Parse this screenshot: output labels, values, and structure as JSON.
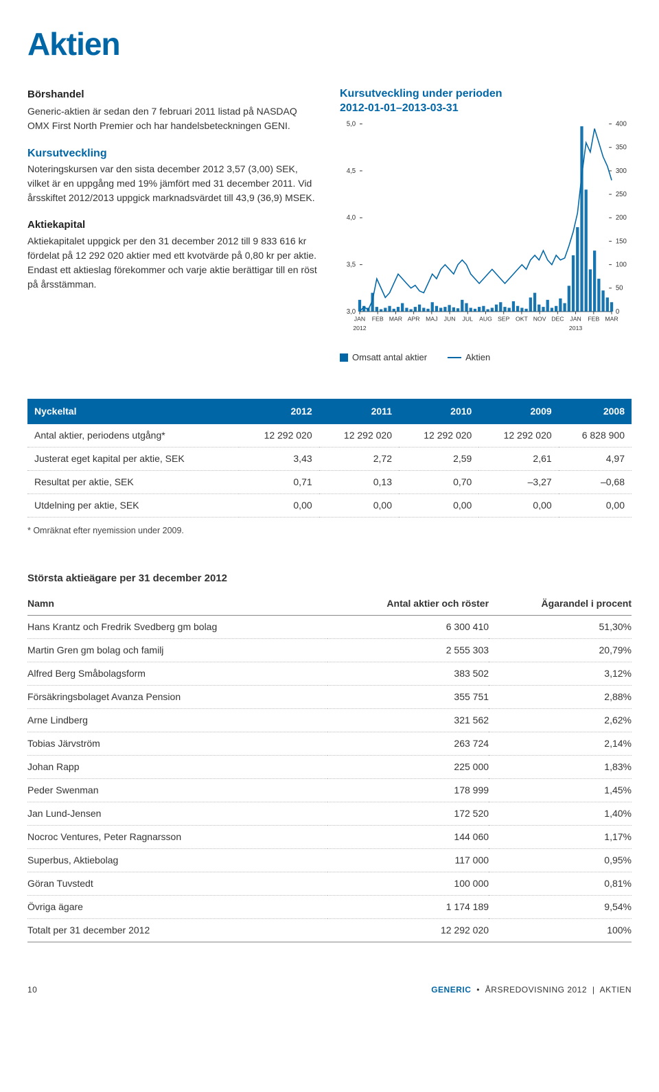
{
  "page": {
    "title": "Aktien",
    "number": "10",
    "footer_brand": "GENERIC",
    "footer_text": "ÅRSREDOVISNING 2012",
    "footer_section": "AKTIEN"
  },
  "sections": {
    "borshandel": {
      "heading": "Börshandel",
      "text": "Generic-aktien är sedan den 7 februari 2011 listad på NASDAQ OMX First North Premier och har handelsbeteckningen GENI."
    },
    "kursutveckling": {
      "heading": "Kursutveckling",
      "text": "Noteringskursen var den sista december 2012 3,57 (3,00) SEK, vilket är en uppgång med 19% jämfört med 31 december 2011. Vid årsskiftet 2012/2013 uppgick marknadsvärdet till 43,9 (36,9) MSEK."
    },
    "aktiekapital": {
      "heading": "Aktiekapital",
      "text": "Aktiekapitalet uppgick per den 31 december 2012 till 9 833 616 kr fördelat på 12 292 020 aktier med ett kvotvärde på 0,80 kr per aktie. Endast ett aktieslag förekommer och varje aktie berättigar till en röst på årsstämman."
    }
  },
  "chart": {
    "title_line1": "Kursutveckling under perioden",
    "title_line2": "2012-01-01–2013-03-31",
    "type": "line+bar",
    "left_axis": {
      "min": 3.0,
      "max": 5.0,
      "ticks": [
        "5,0",
        "4,5",
        "4,0",
        "3,5",
        "3,0"
      ]
    },
    "right_axis": {
      "min": 0,
      "max": 400,
      "ticks": [
        "400",
        "350",
        "300",
        "250",
        "200",
        "150",
        "100",
        "50",
        "0"
      ]
    },
    "x_labels": [
      "JAN",
      "FEB",
      "MAR",
      "APR",
      "MAJ",
      "JUN",
      "JUL",
      "AUG",
      "SEP",
      "OKT",
      "NOV",
      "DEC",
      "JAN",
      "FEB",
      "MAR"
    ],
    "x_year_left": "2012",
    "x_year_right": "2013",
    "line_color": "#0066a6",
    "bar_color": "#0066a6",
    "grid_color": "#dcdcdc",
    "background_color": "#ffffff",
    "axis_fontsize": 10,
    "legend": {
      "volume_label": "Omsatt antal aktier",
      "price_label": "Aktien"
    },
    "price_series": [
      3.0,
      3.05,
      3.02,
      3.12,
      3.35,
      3.25,
      3.15,
      3.2,
      3.3,
      3.4,
      3.35,
      3.3,
      3.25,
      3.28,
      3.22,
      3.2,
      3.3,
      3.4,
      3.35,
      3.45,
      3.5,
      3.45,
      3.4,
      3.5,
      3.55,
      3.5,
      3.4,
      3.35,
      3.3,
      3.35,
      3.4,
      3.45,
      3.4,
      3.35,
      3.3,
      3.35,
      3.4,
      3.45,
      3.5,
      3.45,
      3.55,
      3.6,
      3.55,
      3.65,
      3.55,
      3.5,
      3.6,
      3.55,
      3.57,
      3.7,
      3.85,
      4.05,
      4.45,
      4.8,
      4.7,
      4.95,
      4.8,
      4.65,
      4.55,
      4.4
    ],
    "volume_series": [
      25,
      12,
      8,
      40,
      10,
      5,
      8,
      12,
      6,
      10,
      18,
      8,
      5,
      10,
      15,
      8,
      6,
      20,
      12,
      8,
      10,
      14,
      9,
      7,
      25,
      18,
      8,
      6,
      10,
      12,
      5,
      8,
      15,
      20,
      10,
      8,
      22,
      12,
      8,
      6,
      30,
      40,
      15,
      10,
      25,
      8,
      12,
      28,
      18,
      55,
      120,
      180,
      395,
      260,
      90,
      130,
      70,
      45,
      30,
      20
    ]
  },
  "nyckeltal": {
    "columns": [
      "Nyckeltal",
      "2012",
      "2011",
      "2010",
      "2009",
      "2008"
    ],
    "rows": [
      [
        "Antal aktier, periodens utgång*",
        "12 292 020",
        "12 292 020",
        "12 292 020",
        "12 292 020",
        "6 828 900"
      ],
      [
        "Justerat eget kapital per aktie, SEK",
        "3,43",
        "2,72",
        "2,59",
        "2,61",
        "4,97"
      ],
      [
        "Resultat per aktie, SEK",
        "0,71",
        "0,13",
        "0,70",
        "–3,27",
        "–0,68"
      ],
      [
        "Utdelning per aktie, SEK",
        "0,00",
        "0,00",
        "0,00",
        "0,00",
        "0,00"
      ]
    ],
    "footnote": "* Omräknat efter nyemission under 2009."
  },
  "owners": {
    "title": "Största aktieägare per 31 december 2012",
    "columns": [
      "Namn",
      "Antal aktier och röster",
      "Ägarandel i procent"
    ],
    "rows": [
      [
        "Hans Krantz och Fredrik Svedberg gm bolag",
        "6 300 410",
        "51,30%"
      ],
      [
        "Martin Gren gm bolag och familj",
        "2 555 303",
        "20,79%"
      ],
      [
        "Alfred Berg Småbolagsform",
        "383 502",
        "3,12%"
      ],
      [
        "Försäkringsbolaget Avanza Pension",
        "355 751",
        "2,88%"
      ],
      [
        "Arne Lindberg",
        "321 562",
        "2,62%"
      ],
      [
        "Tobias Järvström",
        "263 724",
        "2,14%"
      ],
      [
        "Johan Rapp",
        "225 000",
        "1,83%"
      ],
      [
        "Peder Swenman",
        "178 999",
        "1,45%"
      ],
      [
        "Jan Lund-Jensen",
        "172 520",
        "1,40%"
      ],
      [
        "Nocroc Ventures, Peter Ragnarsson",
        "144 060",
        "1,17%"
      ],
      [
        "Superbus, Aktiebolag",
        "117 000",
        "0,95%"
      ],
      [
        "Göran Tuvstedt",
        "100 000",
        "0,81%"
      ],
      [
        "Övriga ägare",
        "1 174 189",
        "9,54%"
      ]
    ],
    "total": [
      "Totalt per 31 december 2012",
      "12 292 020",
      "100%"
    ]
  }
}
